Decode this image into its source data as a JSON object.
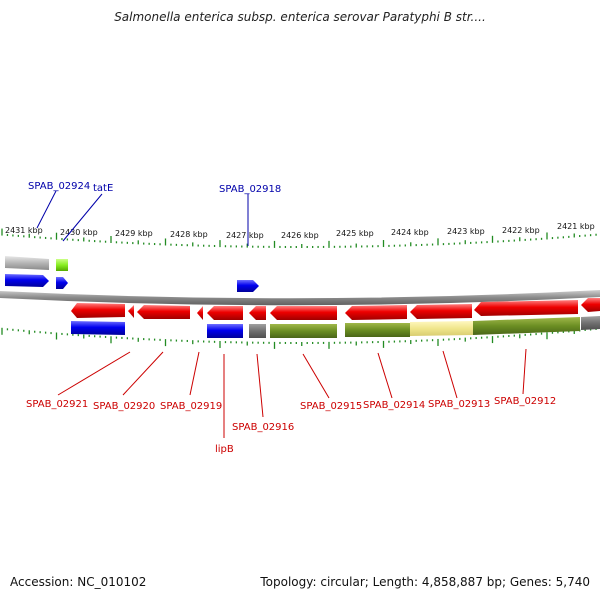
{
  "title": "Salmonella enterica subsp. enterica serovar Paratyphi B str....",
  "footer": {
    "accession": "Accession: NC_010102",
    "summary": "Topology: circular; Length: 4,858,887 bp; Genes: 5,740"
  },
  "colors": {
    "forward_strand_gene": "#0000ee",
    "reverse_strand_gene": "#ee0000",
    "label_top": "#0000aa",
    "label_bottom": "#cc0000",
    "tick": "#228b22",
    "backbone": "#7f7f7f",
    "olive_feature": "#6b8e23",
    "pale_yellow_feature": "#f0e68c",
    "gray_feature": "#8f8f8f",
    "lime_feature": "#99ff33"
  },
  "scale": {
    "tick_labels": [
      "2431 kbp",
      "2430 kbp",
      "2429 kbp",
      "2428 kbp",
      "2427 kbp",
      "2426 kbp",
      "2425 kbp",
      "2424 kbp",
      "2423 kbp",
      "2422 kbp",
      "2421 kbp"
    ]
  },
  "top_labels": [
    "SPAB_02924",
    "tatE",
    "SPAB_02918"
  ],
  "bottom_labels": [
    "SPAB_02921",
    "SPAB_02920",
    "SPAB_02919",
    "lipB",
    "SPAB_02916",
    "SPAB_02915",
    "SPAB_02914",
    "SPAB_02913",
    "SPAB_02912"
  ]
}
